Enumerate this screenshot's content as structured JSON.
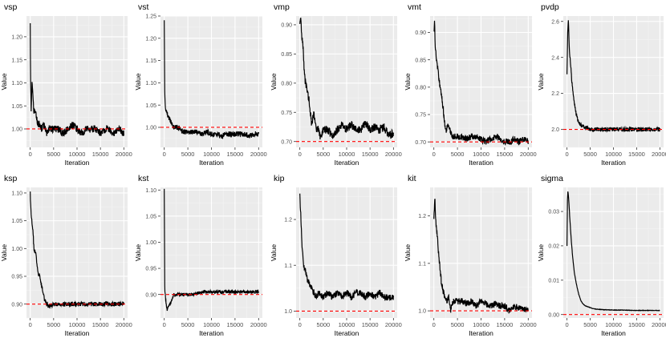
{
  "chart_data": [
    {
      "type": "line",
      "title": "vsp",
      "xlabel": "Iteration",
      "ylabel": "Value",
      "xlim": [
        -800,
        20800
      ],
      "ylim": [
        0.96,
        1.245
      ],
      "xticks": [
        0,
        5000,
        10000,
        15000,
        20000
      ],
      "yticks": [
        1.0,
        1.05,
        1.1,
        1.15,
        1.2
      ],
      "ytick_labels": [
        "1.00",
        "1.05",
        "1.10",
        "1.15",
        "1.20"
      ],
      "reference": 1.0,
      "trace": [
        [
          0,
          1.23
        ],
        [
          80,
          1.1
        ],
        [
          200,
          1.04
        ],
        [
          400,
          1.11
        ],
        [
          600,
          1.06
        ],
        [
          800,
          1.04
        ],
        [
          1200,
          1.03
        ],
        [
          1600,
          1.01
        ],
        [
          2000,
          1.01
        ],
        [
          2500,
          1.0
        ],
        [
          3000,
          1.01
        ],
        [
          3500,
          0.99
        ],
        [
          4000,
          1.0
        ],
        [
          5000,
          1.0
        ],
        [
          6000,
          1.0
        ],
        [
          7000,
          0.99
        ],
        [
          8000,
          1.0
        ],
        [
          9000,
          1.01
        ],
        [
          10000,
          1.0
        ],
        [
          11000,
          0.99
        ],
        [
          12000,
          1.0
        ],
        [
          13000,
          1.0
        ],
        [
          14000,
          1.0
        ],
        [
          15000,
          0.99
        ],
        [
          16000,
          1.0
        ],
        [
          17000,
          1.0
        ],
        [
          18000,
          0.99
        ],
        [
          19000,
          1.0
        ],
        [
          20000,
          0.99
        ]
      ],
      "noise": 0.008,
      "seed": 1
    },
    {
      "type": "line",
      "title": "vst",
      "xlabel": "Iteration",
      "ylabel": "Value",
      "xlim": [
        -800,
        20800
      ],
      "ylim": [
        0.955,
        1.25
      ],
      "xticks": [
        0,
        5000,
        10000,
        15000,
        20000
      ],
      "yticks": [
        1.0,
        1.05,
        1.1,
        1.15,
        1.2,
        1.25
      ],
      "ytick_labels": [
        "1.00",
        "1.05",
        "1.10",
        "1.15",
        "1.20",
        "1.25"
      ],
      "reference": 1.0,
      "trace": [
        [
          0,
          1.24
        ],
        [
          100,
          1.07
        ],
        [
          300,
          1.04
        ],
        [
          600,
          1.03
        ],
        [
          1000,
          1.02
        ],
        [
          1500,
          1.01
        ],
        [
          2000,
          1.0
        ],
        [
          3000,
          1.0
        ],
        [
          4000,
          0.99
        ],
        [
          5000,
          0.99
        ],
        [
          6000,
          0.99
        ],
        [
          7000,
          0.99
        ],
        [
          8000,
          0.985
        ],
        [
          9000,
          0.99
        ],
        [
          10000,
          0.985
        ],
        [
          11000,
          0.985
        ],
        [
          12000,
          0.98
        ],
        [
          13000,
          0.985
        ],
        [
          14000,
          0.985
        ],
        [
          15000,
          0.985
        ],
        [
          16000,
          0.985
        ],
        [
          17000,
          0.985
        ],
        [
          18000,
          0.98
        ],
        [
          19000,
          0.985
        ],
        [
          20000,
          0.985
        ]
      ],
      "noise": 0.006,
      "seed": 2
    },
    {
      "type": "line",
      "title": "vmp",
      "xlabel": "Iteration",
      "ylabel": "Value",
      "xlim": [
        -800,
        20800
      ],
      "ylim": [
        0.69,
        0.915
      ],
      "xticks": [
        0,
        5000,
        10000,
        15000,
        20000
      ],
      "yticks": [
        0.7,
        0.75,
        0.8,
        0.85,
        0.9
      ],
      "ytick_labels": [
        "0.70",
        "0.75",
        "0.80",
        "0.85",
        "0.90"
      ],
      "reference": 0.7,
      "trace": [
        [
          0,
          0.9
        ],
        [
          200,
          0.91
        ],
        [
          400,
          0.88
        ],
        [
          700,
          0.86
        ],
        [
          1000,
          0.81
        ],
        [
          1500,
          0.79
        ],
        [
          2000,
          0.77
        ],
        [
          2500,
          0.73
        ],
        [
          3000,
          0.75
        ],
        [
          3500,
          0.72
        ],
        [
          4000,
          0.72
        ],
        [
          4500,
          0.705
        ],
        [
          5000,
          0.72
        ],
        [
          6000,
          0.72
        ],
        [
          7000,
          0.71
        ],
        [
          8000,
          0.72
        ],
        [
          9000,
          0.73
        ],
        [
          10000,
          0.72
        ],
        [
          11000,
          0.73
        ],
        [
          12000,
          0.72
        ],
        [
          13000,
          0.72
        ],
        [
          14000,
          0.73
        ],
        [
          15000,
          0.72
        ],
        [
          16000,
          0.725
        ],
        [
          17000,
          0.72
        ],
        [
          18000,
          0.725
        ],
        [
          19000,
          0.71
        ],
        [
          20000,
          0.715
        ]
      ],
      "noise": 0.007,
      "seed": 3
    },
    {
      "type": "line",
      "title": "vmt",
      "xlabel": "Iteration",
      "ylabel": "Value",
      "xlim": [
        -800,
        20800
      ],
      "ylim": [
        0.69,
        0.93
      ],
      "xticks": [
        0,
        5000,
        10000,
        15000,
        20000
      ],
      "yticks": [
        0.7,
        0.75,
        0.8,
        0.85,
        0.9
      ],
      "ytick_labels": [
        "0.70",
        "0.75",
        "0.80",
        "0.85",
        "0.90"
      ],
      "reference": 0.7,
      "trace": [
        [
          0,
          0.9
        ],
        [
          150,
          0.92
        ],
        [
          300,
          0.87
        ],
        [
          600,
          0.85
        ],
        [
          1000,
          0.82
        ],
        [
          1500,
          0.79
        ],
        [
          2000,
          0.76
        ],
        [
          2500,
          0.72
        ],
        [
          3000,
          0.73
        ],
        [
          3500,
          0.72
        ],
        [
          4000,
          0.71
        ],
        [
          5000,
          0.71
        ],
        [
          6000,
          0.71
        ],
        [
          7000,
          0.705
        ],
        [
          8000,
          0.71
        ],
        [
          9000,
          0.71
        ],
        [
          10000,
          0.705
        ],
        [
          11000,
          0.7
        ],
        [
          12000,
          0.705
        ],
        [
          13000,
          0.71
        ],
        [
          14000,
          0.705
        ],
        [
          15000,
          0.7
        ],
        [
          16000,
          0.7
        ],
        [
          17000,
          0.705
        ],
        [
          18000,
          0.7
        ],
        [
          19000,
          0.705
        ],
        [
          20000,
          0.7
        ]
      ],
      "noise": 0.006,
      "seed": 4
    },
    {
      "type": "line",
      "title": "pvdp",
      "xlabel": "Iteration",
      "ylabel": "Value",
      "xlim": [
        -800,
        20800
      ],
      "ylim": [
        1.9,
        2.63
      ],
      "xticks": [
        0,
        5000,
        10000,
        15000,
        20000
      ],
      "yticks": [
        2.0,
        2.2,
        2.4,
        2.6
      ],
      "ytick_labels": [
        "2.0",
        "2.2",
        "2.4",
        "2.6"
      ],
      "reference": 2.0,
      "trace": [
        [
          0,
          2.3
        ],
        [
          150,
          2.55
        ],
        [
          300,
          2.6
        ],
        [
          500,
          2.45
        ],
        [
          800,
          2.35
        ],
        [
          1000,
          2.28
        ],
        [
          1300,
          2.2
        ],
        [
          1600,
          2.15
        ],
        [
          2000,
          2.08
        ],
        [
          2500,
          2.04
        ],
        [
          3000,
          2.02
        ],
        [
          4000,
          2.01
        ],
        [
          5000,
          2.0
        ],
        [
          6000,
          2.0
        ],
        [
          8000,
          2.0
        ],
        [
          10000,
          2.0
        ],
        [
          12000,
          2.0
        ],
        [
          14000,
          2.0
        ],
        [
          16000,
          2.0
        ],
        [
          18000,
          2.0
        ],
        [
          20000,
          2.0
        ]
      ],
      "noise": 0.012,
      "seed": 5
    },
    {
      "type": "line",
      "title": "ksp",
      "xlabel": "Iteration",
      "ylabel": "Value",
      "xlim": [
        -800,
        20800
      ],
      "ylim": [
        0.875,
        1.11
      ],
      "xticks": [
        0,
        5000,
        10000,
        15000,
        20000
      ],
      "yticks": [
        0.9,
        0.95,
        1.0,
        1.05,
        1.1
      ],
      "ytick_labels": [
        "0.90",
        "0.95",
        "1.00",
        "1.05",
        "1.10"
      ],
      "reference": 0.9,
      "trace": [
        [
          0,
          1.1
        ],
        [
          200,
          1.06
        ],
        [
          500,
          1.04
        ],
        [
          800,
          1.0
        ],
        [
          1200,
          0.99
        ],
        [
          1600,
          0.96
        ],
        [
          2000,
          0.95
        ],
        [
          2500,
          0.93
        ],
        [
          3000,
          0.91
        ],
        [
          3500,
          0.9
        ],
        [
          4000,
          0.895
        ],
        [
          5000,
          0.9
        ],
        [
          6000,
          0.9
        ],
        [
          8000,
          0.9
        ],
        [
          10000,
          0.9
        ],
        [
          12000,
          0.9
        ],
        [
          14000,
          0.9
        ],
        [
          16000,
          0.9
        ],
        [
          18000,
          0.9
        ],
        [
          20000,
          0.9
        ]
      ],
      "noise": 0.004,
      "seed": 6
    },
    {
      "type": "line",
      "title": "kst",
      "xlabel": "Iteration",
      "ylabel": "Value",
      "xlim": [
        -800,
        20800
      ],
      "ylim": [
        0.855,
        1.105
      ],
      "xticks": [
        0,
        5000,
        10000,
        15000,
        20000
      ],
      "yticks": [
        0.9,
        0.95,
        1.0,
        1.05,
        1.1
      ],
      "ytick_labels": [
        "0.90",
        "0.95",
        "1.00",
        "1.05",
        "1.10"
      ],
      "reference": 0.9,
      "trace": [
        [
          0,
          1.1
        ],
        [
          100,
          0.91
        ],
        [
          300,
          0.89
        ],
        [
          600,
          0.87
        ],
        [
          900,
          0.88
        ],
        [
          1200,
          0.88
        ],
        [
          1600,
          0.89
        ],
        [
          2000,
          0.9
        ],
        [
          3000,
          0.9
        ],
        [
          4000,
          0.9
        ],
        [
          6000,
          0.9
        ],
        [
          8000,
          0.905
        ],
        [
          10000,
          0.905
        ],
        [
          12000,
          0.905
        ],
        [
          14000,
          0.905
        ],
        [
          16000,
          0.905
        ],
        [
          18000,
          0.905
        ],
        [
          20000,
          0.905
        ]
      ],
      "noise": 0.003,
      "seed": 7
    },
    {
      "type": "line",
      "title": "kip",
      "xlabel": "Iteration",
      "ylabel": "Value",
      "xlim": [
        -800,
        20800
      ],
      "ylim": [
        0.985,
        1.27
      ],
      "xticks": [
        0,
        5000,
        10000,
        15000,
        20000
      ],
      "yticks": [
        1.0,
        1.1,
        1.2
      ],
      "ytick_labels": [
        "1.0",
        "1.1",
        "1.2"
      ],
      "reference": 1.0,
      "trace": [
        [
          0,
          1.25
        ],
        [
          150,
          1.22
        ],
        [
          300,
          1.18
        ],
        [
          500,
          1.14
        ],
        [
          800,
          1.1
        ],
        [
          1200,
          1.09
        ],
        [
          1600,
          1.07
        ],
        [
          2000,
          1.06
        ],
        [
          2500,
          1.05
        ],
        [
          3000,
          1.04
        ],
        [
          3500,
          1.03
        ],
        [
          4000,
          1.04
        ],
        [
          5000,
          1.03
        ],
        [
          6000,
          1.04
        ],
        [
          7000,
          1.03
        ],
        [
          8000,
          1.04
        ],
        [
          9000,
          1.03
        ],
        [
          10000,
          1.04
        ],
        [
          11000,
          1.03
        ],
        [
          12000,
          1.04
        ],
        [
          13000,
          1.04
        ],
        [
          14000,
          1.03
        ],
        [
          15000,
          1.04
        ],
        [
          16000,
          1.03
        ],
        [
          17000,
          1.04
        ],
        [
          18000,
          1.03
        ],
        [
          19000,
          1.03
        ],
        [
          20000,
          1.03
        ]
      ],
      "noise": 0.007,
      "seed": 8
    },
    {
      "type": "line",
      "title": "kit",
      "xlabel": "Iteration",
      "ylabel": "Value",
      "xlim": [
        -800,
        20800
      ],
      "ylim": [
        0.985,
        1.26
      ],
      "xticks": [
        0,
        5000,
        10000,
        15000,
        20000
      ],
      "yticks": [
        1.0,
        1.1,
        1.2
      ],
      "ytick_labels": [
        "1.0",
        "1.1",
        "1.2"
      ],
      "reference": 1.0,
      "trace": [
        [
          0,
          1.2
        ],
        [
          200,
          1.24
        ],
        [
          400,
          1.19
        ],
        [
          700,
          1.16
        ],
        [
          1000,
          1.12
        ],
        [
          1300,
          1.09
        ],
        [
          1600,
          1.06
        ],
        [
          2000,
          1.04
        ],
        [
          2400,
          1.03
        ],
        [
          2800,
          1.02
        ],
        [
          3200,
          1.03
        ],
        [
          3600,
          1.0
        ],
        [
          4000,
          1.02
        ],
        [
          5000,
          1.02
        ],
        [
          6000,
          1.02
        ],
        [
          7000,
          1.015
        ],
        [
          8000,
          1.02
        ],
        [
          9000,
          1.01
        ],
        [
          10000,
          1.02
        ],
        [
          11000,
          1.015
        ],
        [
          12000,
          1.01
        ],
        [
          13000,
          1.015
        ],
        [
          14000,
          1.01
        ],
        [
          15000,
          1.01
        ],
        [
          16000,
          1.0
        ],
        [
          17000,
          1.01
        ],
        [
          18000,
          1.005
        ],
        [
          19000,
          1.005
        ],
        [
          20000,
          1.0
        ]
      ],
      "noise": 0.007,
      "seed": 9
    },
    {
      "type": "line",
      "title": "sigma",
      "xlabel": "Iteration",
      "ylabel": "Value",
      "xlim": [
        -800,
        20800
      ],
      "ylim": [
        -0.001,
        0.037
      ],
      "xticks": [
        0,
        5000,
        10000,
        15000,
        20000
      ],
      "yticks": [
        0.0,
        0.01,
        0.02,
        0.03
      ],
      "ytick_labels": [
        "0.00",
        "0.01",
        "0.02",
        "0.03"
      ],
      "reference": 0.0,
      "trace": [
        [
          0,
          0.02
        ],
        [
          100,
          0.034
        ],
        [
          200,
          0.036
        ],
        [
          400,
          0.033
        ],
        [
          600,
          0.028
        ],
        [
          900,
          0.022
        ],
        [
          1200,
          0.017
        ],
        [
          1600,
          0.012
        ],
        [
          2000,
          0.009
        ],
        [
          2500,
          0.006
        ],
        [
          3000,
          0.004
        ],
        [
          3500,
          0.003
        ],
        [
          4000,
          0.0025
        ],
        [
          5000,
          0.002
        ],
        [
          6000,
          0.0016
        ],
        [
          8000,
          0.0014
        ],
        [
          10000,
          0.0013
        ],
        [
          12000,
          0.0013
        ],
        [
          14000,
          0.0012
        ],
        [
          16000,
          0.0012
        ],
        [
          18000,
          0.0012
        ],
        [
          20000,
          0.0012
        ]
      ],
      "noise": 6e-05,
      "seed": 10
    }
  ],
  "colors": {
    "panel": "#ebebeb",
    "grid_major": "#ffffff",
    "grid_minor": "#f4f4f4",
    "trace": "#000000",
    "reference": "#ff0000",
    "tick_text": "#4d4d4d",
    "text": "#000000"
  }
}
